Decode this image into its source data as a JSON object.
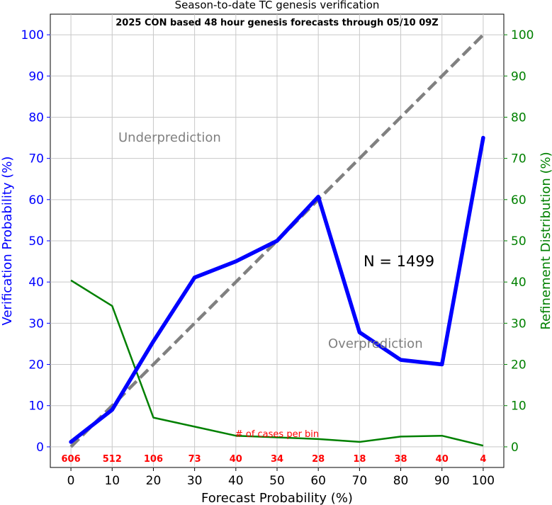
{
  "chart_data": {
    "type": "line",
    "title": "Season-to-date TC genesis verification",
    "subtitle": "2025 CON based 48 hour genesis forecasts through 05/10 09Z",
    "xlabel": "Forecast Probability (%)",
    "ylabel_left": "Verification Probability (%)",
    "ylabel_right": "Refinement Distribution (%)",
    "xlim": [
      -5,
      105
    ],
    "ylim": [
      -5,
      105
    ],
    "ticks": [
      0,
      10,
      20,
      30,
      40,
      50,
      60,
      70,
      80,
      90,
      100
    ],
    "grid": true,
    "x": [
      0,
      10,
      20,
      30,
      40,
      50,
      60,
      70,
      80,
      90,
      100
    ],
    "series": [
      {
        "role": "verification",
        "axis": "left",
        "color": "#0000ff",
        "values": [
          1.2,
          9.0,
          25.6,
          41.1,
          45.0,
          50.0,
          60.7,
          27.8,
          21.1,
          20.0,
          75.0
        ]
      },
      {
        "role": "refinement",
        "axis": "right",
        "color": "#008000",
        "values": [
          40.4,
          34.2,
          7.1,
          4.9,
          2.7,
          2.3,
          1.9,
          1.2,
          2.5,
          2.7,
          0.3
        ]
      },
      {
        "role": "perfect-reliability",
        "axis": "left",
        "color": "#808080",
        "dashed": true,
        "x": [
          0,
          100
        ],
        "values": [
          0,
          100
        ]
      }
    ],
    "annotations": {
      "underprediction": "Underprediction",
      "overprediction": "Overprediction",
      "n_label": "N = 1499",
      "cases_label": "# of cases per bin"
    },
    "case_counts": [
      606,
      512,
      106,
      73,
      40,
      34,
      28,
      18,
      38,
      40,
      4
    ],
    "colors": {
      "left_axis": "#0000ff",
      "right_axis": "#008000",
      "counts": "#ff0000",
      "annotation": "#808080",
      "grid": "#c8c8c8"
    }
  }
}
